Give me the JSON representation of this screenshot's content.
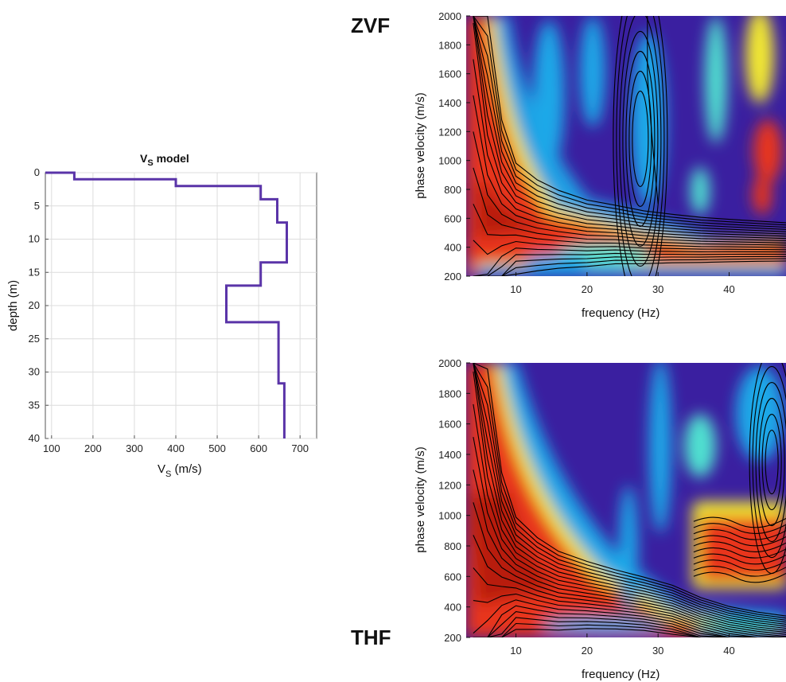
{
  "panel_labels": {
    "top": "ZVF",
    "bottom": "THF"
  },
  "colors": {
    "profile": "#5a34a8",
    "background_low": "#3a1fa0",
    "mid_low": "#1ea8e8",
    "mid": "#50e0d0",
    "mid_high": "#f2e830",
    "high": "#e8341c",
    "peak": "#b81c10",
    "contour": "#000000",
    "grid": "#dcdcdc"
  },
  "chart_data": [
    {
      "id": "vs-model",
      "type": "line",
      "title_main": "V",
      "title_sub": "S",
      "title_rest": " model",
      "xlabel_main": "V",
      "xlabel_sub": "S",
      "xlabel_rest": " (m/s)",
      "ylabel": "depth (m)",
      "xlim": [
        85,
        740
      ],
      "ylim": [
        0,
        40
      ],
      "y_inverted": true,
      "xticks": [
        100,
        200,
        300,
        400,
        500,
        600,
        700
      ],
      "yticks": [
        0,
        5,
        10,
        15,
        20,
        25,
        30,
        35,
        40
      ],
      "grid": true,
      "series": [
        {
          "x": [
            85,
            155,
            155,
            400,
            400,
            605,
            605,
            645,
            645,
            668,
            668,
            605,
            605,
            522,
            522,
            648,
            648,
            662,
            662
          ],
          "y": [
            0,
            0,
            1,
            1,
            2,
            2,
            4,
            4,
            7.5,
            7.5,
            13.5,
            13.5,
            17,
            17,
            22.5,
            22.5,
            31.7,
            31.7,
            40
          ]
        }
      ]
    },
    {
      "id": "zvf-spectrum",
      "type": "heatmap",
      "panel_label": "ZVF",
      "xlabel": "frequency (Hz)",
      "ylabel": "phase velocity (m/s)",
      "xlim": [
        3,
        48
      ],
      "ylim": [
        200,
        2000
      ],
      "xticks": [
        10,
        20,
        30,
        40
      ],
      "yticks": [
        200,
        400,
        600,
        800,
        1000,
        1200,
        1400,
        1600,
        1800,
        2000
      ],
      "colormap": "jet",
      "contours": true,
      "dispersion_ridge": {
        "frequency": [
          4,
          6,
          8,
          10,
          13,
          16,
          20,
          24,
          28,
          32,
          36,
          40,
          44,
          48
        ],
        "velocity": [
          1450,
          900,
          700,
          620,
          570,
          540,
          510,
          500,
          480,
          470,
          460,
          455,
          450,
          445
        ]
      }
    },
    {
      "id": "thf-spectrum",
      "type": "heatmap",
      "panel_label": "THF",
      "xlabel": "frequency (Hz)",
      "ylabel": "phase velocity (m/s)",
      "xlim": [
        3,
        48
      ],
      "ylim": [
        200,
        2000
      ],
      "xticks": [
        10,
        20,
        30,
        40
      ],
      "yticks": [
        200,
        400,
        600,
        800,
        1000,
        1200,
        1400,
        1600,
        1800,
        2000
      ],
      "colormap": "jet",
      "contours": true,
      "dispersion_ridge": {
        "frequency": [
          4,
          6,
          8,
          10,
          13,
          16,
          20,
          24,
          28,
          32,
          36,
          40,
          44,
          48
        ],
        "velocity": [
          1300,
          900,
          720,
          640,
          570,
          520,
          490,
          460,
          430,
          390,
          320,
          270,
          240,
          220
        ]
      }
    }
  ]
}
